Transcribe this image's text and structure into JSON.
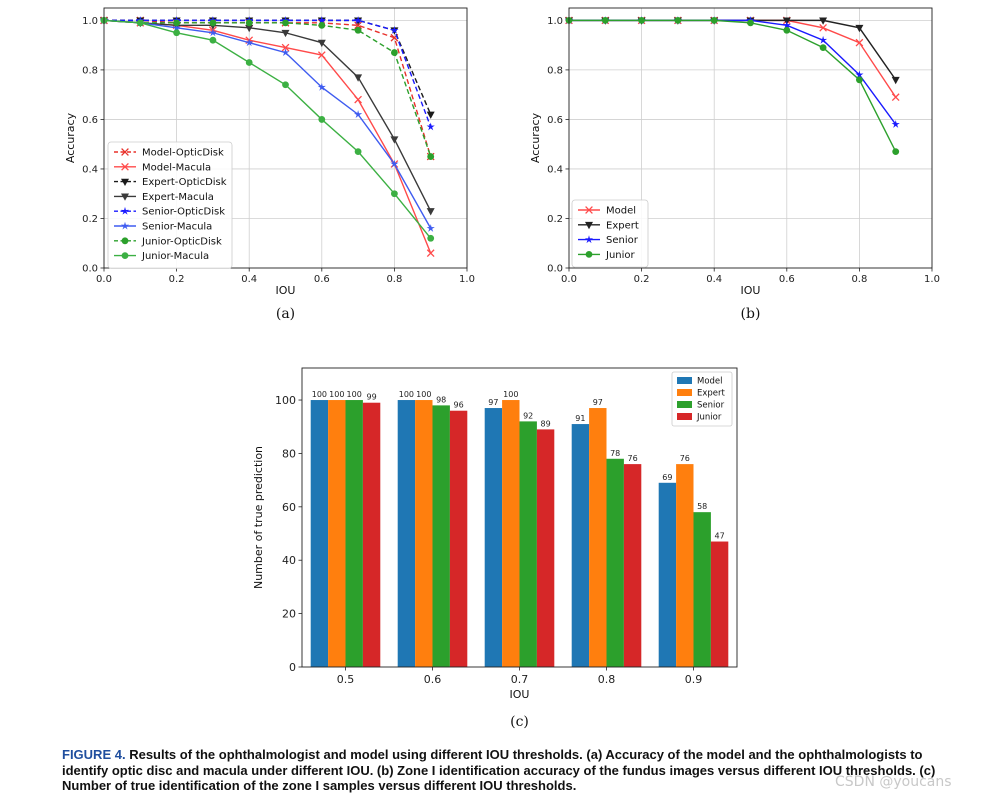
{
  "chart_data": [
    {
      "type": "line",
      "panel_label": "(a)",
      "xlabel": "IOU",
      "ylabel": "Accuracy",
      "xlim": [
        0.0,
        1.0
      ],
      "ylim": [
        0.0,
        1.05
      ],
      "xticks": [
        "0.0",
        "0.2",
        "0.4",
        "0.6",
        "0.8",
        "1.0"
      ],
      "yticks": [
        "0.0",
        "0.2",
        "0.4",
        "0.6",
        "0.8",
        "1.0"
      ],
      "grid": true,
      "legend_position": "center-left",
      "x": [
        0.0,
        0.1,
        0.2,
        0.3,
        0.4,
        0.5,
        0.6,
        0.7,
        0.8,
        0.9
      ],
      "series": [
        {
          "name": "Model-OpticDisk",
          "color": "#e8302a",
          "marker": "x",
          "dashed": true,
          "values": [
            1.0,
            1.0,
            0.99,
            0.99,
            0.99,
            0.99,
            0.99,
            0.98,
            0.93,
            0.45
          ]
        },
        {
          "name": "Model-Macula",
          "color": "#ff4a4a",
          "marker": "x",
          "dashed": false,
          "values": [
            1.0,
            0.99,
            0.98,
            0.96,
            0.92,
            0.89,
            0.86,
            0.68,
            0.42,
            0.06
          ]
        },
        {
          "name": "Expert-OpticDisk",
          "color": "#1a1a1a",
          "marker": "v",
          "dashed": true,
          "values": [
            1.0,
            1.0,
            1.0,
            1.0,
            1.0,
            1.0,
            1.0,
            1.0,
            0.96,
            0.62
          ]
        },
        {
          "name": "Expert-Macula",
          "color": "#3a3a3a",
          "marker": "v",
          "dashed": false,
          "values": [
            1.0,
            0.99,
            0.98,
            0.98,
            0.97,
            0.95,
            0.91,
            0.77,
            0.52,
            0.23
          ]
        },
        {
          "name": "Senior-OpticDisk",
          "color": "#1a1aff",
          "marker": "*",
          "dashed": true,
          "values": [
            1.0,
            1.0,
            1.0,
            1.0,
            1.0,
            1.0,
            1.0,
            1.0,
            0.96,
            0.57
          ]
        },
        {
          "name": "Senior-Macula",
          "color": "#3f5cf0",
          "marker": "*",
          "dashed": false,
          "values": [
            1.0,
            0.99,
            0.97,
            0.95,
            0.91,
            0.87,
            0.73,
            0.62,
            0.42,
            0.16
          ]
        },
        {
          "name": "Junior-OpticDisk",
          "color": "#2ca02c",
          "marker": "o",
          "dashed": true,
          "values": [
            1.0,
            0.99,
            0.99,
            0.99,
            0.99,
            0.99,
            0.98,
            0.96,
            0.87,
            0.45
          ]
        },
        {
          "name": "Junior-Macula",
          "color": "#3cb043",
          "marker": "o",
          "dashed": false,
          "values": [
            1.0,
            0.99,
            0.95,
            0.92,
            0.83,
            0.74,
            0.6,
            0.47,
            0.3,
            0.12
          ]
        }
      ]
    },
    {
      "type": "line",
      "panel_label": "(b)",
      "xlabel": "IOU",
      "ylabel": "Accuracy",
      "xlim": [
        0.0,
        1.0
      ],
      "ylim": [
        0.0,
        1.05
      ],
      "xticks": [
        "0.0",
        "0.2",
        "0.4",
        "0.6",
        "0.8",
        "1.0"
      ],
      "yticks": [
        "0.0",
        "0.2",
        "0.4",
        "0.6",
        "0.8",
        "1.0"
      ],
      "grid": true,
      "legend_position": "lower-left",
      "x": [
        0.0,
        0.1,
        0.2,
        0.3,
        0.4,
        0.5,
        0.6,
        0.7,
        0.8,
        0.9
      ],
      "series": [
        {
          "name": "Model",
          "color": "#ff4a4a",
          "marker": "x",
          "dashed": false,
          "values": [
            1.0,
            1.0,
            1.0,
            1.0,
            1.0,
            1.0,
            1.0,
            0.97,
            0.91,
            0.69
          ]
        },
        {
          "name": "Expert",
          "color": "#222222",
          "marker": "v",
          "dashed": false,
          "values": [
            1.0,
            1.0,
            1.0,
            1.0,
            1.0,
            1.0,
            1.0,
            1.0,
            0.97,
            0.76
          ]
        },
        {
          "name": "Senior",
          "color": "#1a1aff",
          "marker": "*",
          "dashed": false,
          "values": [
            1.0,
            1.0,
            1.0,
            1.0,
            1.0,
            1.0,
            0.98,
            0.92,
            0.78,
            0.58
          ]
        },
        {
          "name": "Junior",
          "color": "#2ca02c",
          "marker": "o",
          "dashed": false,
          "values": [
            1.0,
            1.0,
            1.0,
            1.0,
            1.0,
            0.99,
            0.96,
            0.89,
            0.76,
            0.47
          ]
        }
      ]
    },
    {
      "type": "bar",
      "panel_label": "(c)",
      "xlabel": "IOU",
      "ylabel": "Number of true prediction",
      "ylim": [
        0,
        112
      ],
      "yticks": [
        "0",
        "20",
        "40",
        "60",
        "80",
        "100"
      ],
      "grid": false,
      "legend_position": "top-right",
      "categories": [
        "0.5",
        "0.6",
        "0.7",
        "0.8",
        "0.9"
      ],
      "series": [
        {
          "name": "Model",
          "color": "#1f77b4",
          "values": [
            100,
            100,
            97,
            91,
            69
          ]
        },
        {
          "name": "Expert",
          "color": "#ff7f0e",
          "values": [
            100,
            100,
            100,
            97,
            76
          ]
        },
        {
          "name": "Senior",
          "color": "#2ca02c",
          "values": [
            100,
            98,
            92,
            78,
            58
          ]
        },
        {
          "name": "Junior",
          "color": "#d62728",
          "values": [
            99,
            96,
            89,
            76,
            47
          ]
        }
      ]
    }
  ],
  "caption": {
    "figure_label": "FIGURE 4.",
    "text": "Results of the ophthalmologist and model using different IOU thresholds. (a) Accuracy of the model and the ophthalmologists to identify optic disc and macula under different IOU. (b) Zone I identification accuracy of the fundus images versus different IOU thresholds. (c) Number of true identification of the zone I samples versus different IOU thresholds."
  },
  "watermark": "CSDN @youcans"
}
